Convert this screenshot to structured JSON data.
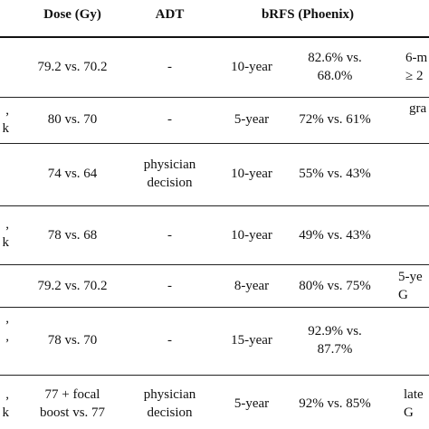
{
  "table": {
    "headers": {
      "dose": "Dose (Gy)",
      "adt": "ADT",
      "brfs": "bRFS (Phoenix)"
    },
    "rows": [
      {
        "left": "",
        "dose": "79.2 vs. 70.2",
        "adt": "-",
        "period": "10-year",
        "brfs": "82.6% vs.\n68.0%",
        "right": "6-m\n≥ 2"
      },
      {
        "left": ",\nk",
        "dose": "80 vs. 70",
        "adt": "-",
        "period": "5-year",
        "brfs": "72% vs. 61%",
        "right": "gra"
      },
      {
        "left": "",
        "dose": "74 vs. 64",
        "adt": "physician\ndecision",
        "period": "10-year",
        "brfs": "55% vs. 43%",
        "right": ""
      },
      {
        "left": ",\nk",
        "dose": "78 vs. 68",
        "adt": "-",
        "period": "10-year",
        "brfs": "49% vs. 43%",
        "right": ""
      },
      {
        "left": "",
        "dose": "79.2 vs. 70.2",
        "adt": "-",
        "period": "8-year",
        "brfs": "80% vs. 75%",
        "right": "5-ye\nG"
      },
      {
        "left": ",\n,",
        "dose": "78 vs. 70",
        "adt": "-",
        "period": "15-year",
        "brfs": "92.9% vs.\n87.7%",
        "right": ""
      },
      {
        "left": ",\nk",
        "dose": "77 + focal\nboost vs. 77",
        "adt": "physician\ndecision",
        "period": "5-year",
        "brfs": "92% vs. 85%",
        "right": "late\nG"
      }
    ]
  }
}
